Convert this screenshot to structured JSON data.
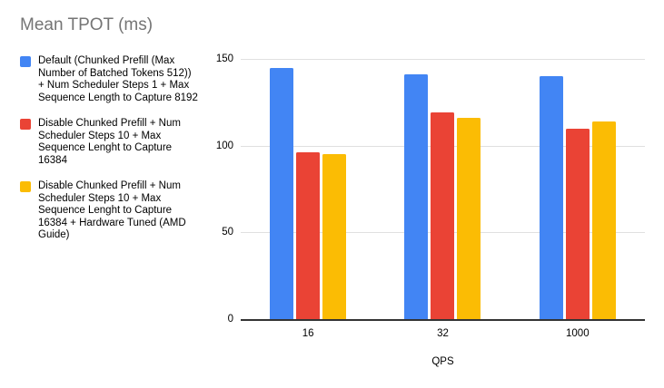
{
  "title": "Mean TPOT (ms)",
  "colors": {
    "series_blue": "#4285F4",
    "series_red": "#EA4335",
    "series_yellow": "#FBBC04",
    "title_gray": "#757575",
    "gridline": "#E0E0E0",
    "axis_line": "#333333",
    "text": "#000000"
  },
  "chart_data": {
    "type": "bar",
    "title": "Mean TPOT (ms)",
    "categories": [
      "16",
      "32",
      "1000"
    ],
    "series": [
      {
        "name": "Default (Chunked Prefill (Max Number of Batched Tokens 512)) + Num Scheduler Steps 1 + Max Sequence Length to Capture 8192",
        "color": "#4285F4",
        "values": [
          145,
          141,
          140
        ]
      },
      {
        "name": "Disable Chunked Prefill + Num Scheduler Steps 10 + Max Sequence Lenght to Capture 16384",
        "color": "#EA4335",
        "values": [
          96,
          119,
          110
        ]
      },
      {
        "name": "Disable Chunked Prefill + Num Scheduler Steps 10 + Max Sequence Lenght to Capture 16384 + Hardware Tuned (AMD Guide)",
        "color": "#FBBC04",
        "values": [
          95,
          116,
          114
        ]
      }
    ],
    "xlabel": "QPS",
    "ylabel": "",
    "ylim": [
      0,
      150
    ],
    "yticks": [
      0,
      50,
      100,
      150
    ],
    "grid": true,
    "legend_position": "left"
  }
}
